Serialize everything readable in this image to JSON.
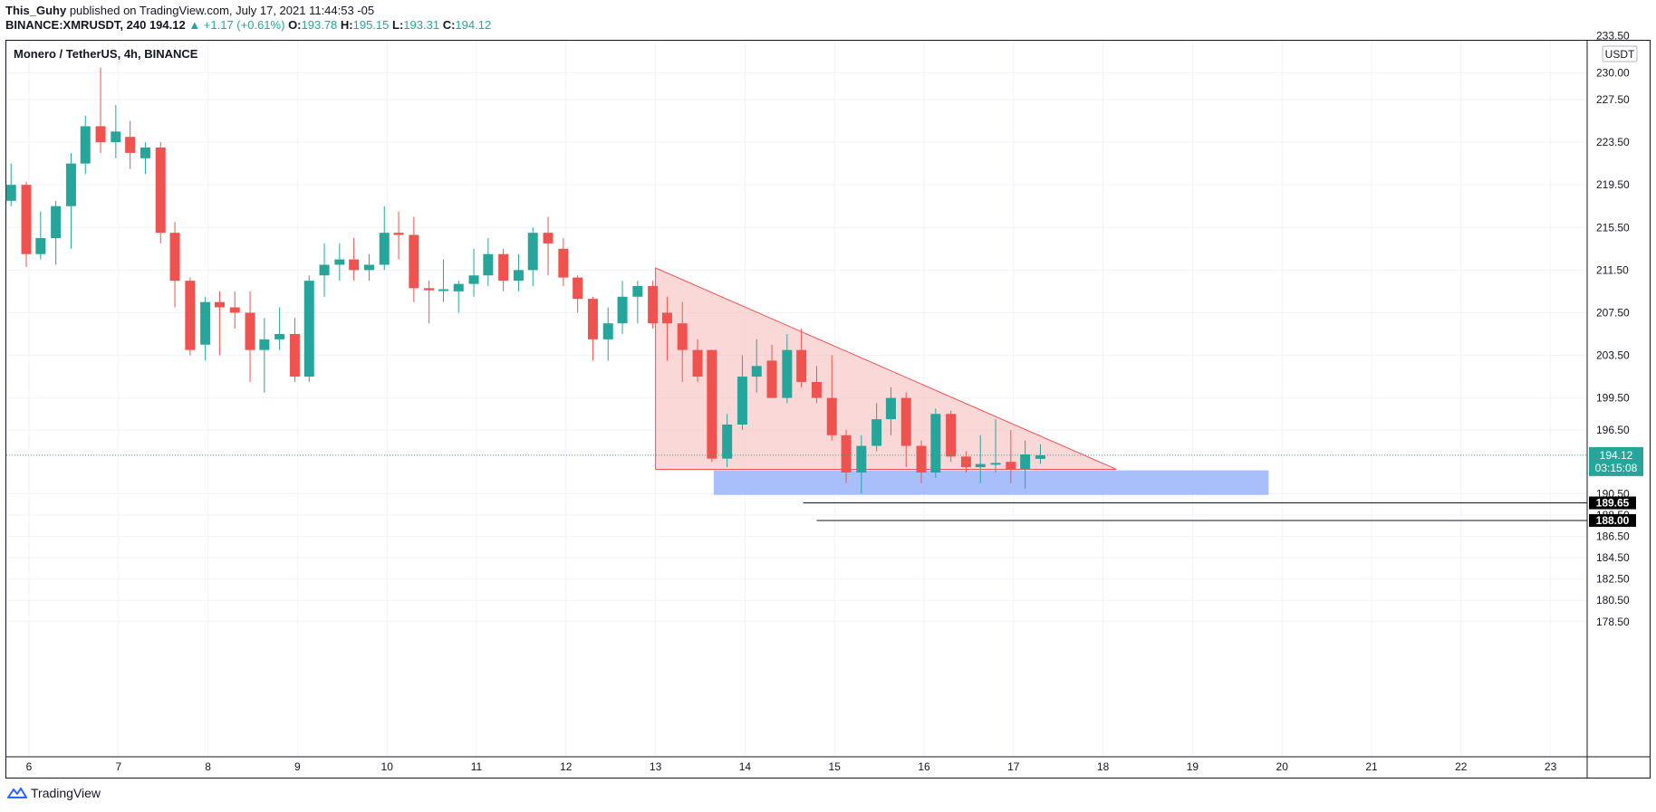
{
  "header": {
    "author": "This_Guhy",
    "published_text": "published on TradingView.com, July 17, 2021 11:44:53 -05",
    "ticker": "BINANCE:XMRUSDT, 240",
    "last": "194.12",
    "change_text": "▲ +1.17 (+0.61%)",
    "o_label": "O:",
    "o_value": "193.78",
    "h_label": "H:",
    "h_value": "195.15",
    "l_label": "L:",
    "l_value": "193.31",
    "c_label": "C:",
    "c_value": "194.12"
  },
  "symbol_title": "Monero / TetherUS, 4h, BINANCE",
  "currency": "USDT",
  "footer": {
    "brand": "TradingView"
  },
  "colors": {
    "up": "#26a69a",
    "down": "#ef5350",
    "triangle_fill": "#f7b8b8",
    "triangle_line": "#ef5350",
    "zone_fill": "#9fb8fb",
    "price_label_bg": "#26a69a",
    "level_label_bg": "#000000"
  },
  "chart_data": {
    "type": "candlestick",
    "y_axis": {
      "ticks": [
        "233.50",
        "230.00",
        "227.50",
        "223.50",
        "219.50",
        "215.50",
        "211.50",
        "207.50",
        "203.50",
        "199.50",
        "196.50",
        "190.50",
        "188.50",
        "186.50",
        "184.50",
        "182.50",
        "180.50",
        "178.50"
      ],
      "range": [
        176.5,
        233.8
      ]
    },
    "x_axis": {
      "ticks": [
        "6",
        "7",
        "8",
        "9",
        "10",
        "11",
        "12",
        "13",
        "14",
        "15",
        "16",
        "17",
        "18",
        "19",
        "20",
        "21",
        "22",
        "23"
      ]
    },
    "candles": [
      {
        "t": 5.8,
        "o": 218.0,
        "h": 221.5,
        "l": 217.5,
        "c": 219.5
      },
      {
        "t": 5.97,
        "o": 219.5,
        "h": 219.8,
        "l": 211.8,
        "c": 213.0
      },
      {
        "t": 6.13,
        "o": 213.0,
        "h": 217.0,
        "l": 212.5,
        "c": 214.5
      },
      {
        "t": 6.3,
        "o": 214.5,
        "h": 218.0,
        "l": 212.0,
        "c": 217.5
      },
      {
        "t": 6.47,
        "o": 217.5,
        "h": 222.5,
        "l": 213.5,
        "c": 221.5
      },
      {
        "t": 6.63,
        "o": 221.5,
        "h": 226.0,
        "l": 220.5,
        "c": 225.0
      },
      {
        "t": 6.8,
        "o": 225.0,
        "h": 230.5,
        "l": 222.5,
        "c": 223.5
      },
      {
        "t": 6.97,
        "o": 223.5,
        "h": 227.0,
        "l": 222.0,
        "c": 224.5
      },
      {
        "t": 7.13,
        "o": 224.0,
        "h": 225.5,
        "l": 221.0,
        "c": 222.5
      },
      {
        "t": 7.3,
        "o": 222.0,
        "h": 223.5,
        "l": 220.5,
        "c": 223.0
      },
      {
        "t": 7.47,
        "o": 223.0,
        "h": 223.5,
        "l": 214.0,
        "c": 215.0
      },
      {
        "t": 7.63,
        "o": 215.0,
        "h": 216.0,
        "l": 208.0,
        "c": 210.5
      },
      {
        "t": 7.8,
        "o": 210.5,
        "h": 210.8,
        "l": 203.5,
        "c": 204.0
      },
      {
        "t": 7.97,
        "o": 204.5,
        "h": 209.0,
        "l": 203.0,
        "c": 208.5
      },
      {
        "t": 8.13,
        "o": 208.5,
        "h": 209.5,
        "l": 203.5,
        "c": 208.0
      },
      {
        "t": 8.3,
        "o": 208.0,
        "h": 209.5,
        "l": 206.0,
        "c": 207.5
      },
      {
        "t": 8.47,
        "o": 207.5,
        "h": 209.5,
        "l": 201.0,
        "c": 204.0
      },
      {
        "t": 8.63,
        "o": 204.0,
        "h": 207.0,
        "l": 200.0,
        "c": 205.0
      },
      {
        "t": 8.8,
        "o": 205.0,
        "h": 208.0,
        "l": 204.0,
        "c": 205.5
      },
      {
        "t": 8.97,
        "o": 205.5,
        "h": 207.0,
        "l": 201.0,
        "c": 201.5
      },
      {
        "t": 9.13,
        "o": 201.5,
        "h": 211.0,
        "l": 201.0,
        "c": 210.5
      },
      {
        "t": 9.3,
        "o": 211.0,
        "h": 214.0,
        "l": 209.0,
        "c": 212.0
      },
      {
        "t": 9.47,
        "o": 212.0,
        "h": 214.0,
        "l": 210.5,
        "c": 212.5
      },
      {
        "t": 9.63,
        "o": 212.5,
        "h": 214.5,
        "l": 210.5,
        "c": 211.5
      },
      {
        "t": 9.8,
        "o": 211.5,
        "h": 213.0,
        "l": 210.5,
        "c": 212.0
      },
      {
        "t": 9.97,
        "o": 212.0,
        "h": 217.5,
        "l": 211.5,
        "c": 215.0
      },
      {
        "t": 10.13,
        "o": 215.0,
        "h": 217.0,
        "l": 212.5,
        "c": 214.8
      },
      {
        "t": 10.3,
        "o": 214.8,
        "h": 216.5,
        "l": 208.5,
        "c": 209.8
      },
      {
        "t": 10.47,
        "o": 209.8,
        "h": 210.5,
        "l": 206.5,
        "c": 209.6
      },
      {
        "t": 10.63,
        "o": 209.6,
        "h": 212.5,
        "l": 208.5,
        "c": 209.7
      },
      {
        "t": 10.8,
        "o": 209.5,
        "h": 210.5,
        "l": 207.5,
        "c": 210.2
      },
      {
        "t": 10.97,
        "o": 210.2,
        "h": 213.5,
        "l": 209.0,
        "c": 211.0
      },
      {
        "t": 11.13,
        "o": 211.0,
        "h": 214.5,
        "l": 210.0,
        "c": 213.0
      },
      {
        "t": 11.3,
        "o": 213.0,
        "h": 213.5,
        "l": 209.5,
        "c": 210.5
      },
      {
        "t": 11.47,
        "o": 210.5,
        "h": 213.0,
        "l": 209.5,
        "c": 211.5
      },
      {
        "t": 11.63,
        "o": 211.5,
        "h": 215.5,
        "l": 210.0,
        "c": 215.0
      },
      {
        "t": 11.8,
        "o": 215.0,
        "h": 216.5,
        "l": 211.0,
        "c": 214.0
      },
      {
        "t": 11.97,
        "o": 213.5,
        "h": 214.5,
        "l": 210.0,
        "c": 210.8
      },
      {
        "t": 12.13,
        "o": 210.8,
        "h": 211.0,
        "l": 207.5,
        "c": 208.8
      },
      {
        "t": 12.3,
        "o": 208.8,
        "h": 209.0,
        "l": 203.0,
        "c": 205.0
      },
      {
        "t": 12.47,
        "o": 205.0,
        "h": 208.0,
        "l": 203.0,
        "c": 206.5
      },
      {
        "t": 12.63,
        "o": 206.5,
        "h": 210.5,
        "l": 205.5,
        "c": 209.0
      },
      {
        "t": 12.8,
        "o": 209.0,
        "h": 210.5,
        "l": 206.5,
        "c": 210.0
      },
      {
        "t": 12.97,
        "o": 210.0,
        "h": 210.5,
        "l": 206.0,
        "c": 206.5
      },
      {
        "t": 13.13,
        "o": 207.5,
        "h": 209.0,
        "l": 203.0,
        "c": 206.5
      },
      {
        "t": 13.3,
        "o": 206.5,
        "h": 208.5,
        "l": 201.0,
        "c": 204.0
      },
      {
        "t": 13.47,
        "o": 204.0,
        "h": 205.0,
        "l": 201.0,
        "c": 201.5
      },
      {
        "t": 13.63,
        "o": 204.0,
        "h": 204.0,
        "l": 193.5,
        "c": 193.8
      },
      {
        "t": 13.8,
        "o": 193.8,
        "h": 198.0,
        "l": 193.0,
        "c": 197.0
      },
      {
        "t": 13.97,
        "o": 197.0,
        "h": 203.5,
        "l": 196.5,
        "c": 201.5
      },
      {
        "t": 14.13,
        "o": 201.5,
        "h": 205.0,
        "l": 200.0,
        "c": 202.5
      },
      {
        "t": 14.3,
        "o": 203.0,
        "h": 204.5,
        "l": 199.5,
        "c": 199.5
      },
      {
        "t": 14.47,
        "o": 199.5,
        "h": 205.5,
        "l": 199.0,
        "c": 204.0
      },
      {
        "t": 14.63,
        "o": 204.0,
        "h": 206.0,
        "l": 200.5,
        "c": 201.0
      },
      {
        "t": 14.8,
        "o": 201.0,
        "h": 202.5,
        "l": 199.0,
        "c": 199.5
      },
      {
        "t": 14.97,
        "o": 199.5,
        "h": 203.5,
        "l": 195.5,
        "c": 196.0
      },
      {
        "t": 15.13,
        "o": 196.0,
        "h": 196.5,
        "l": 191.5,
        "c": 192.5
      },
      {
        "t": 15.3,
        "o": 192.5,
        "h": 196.0,
        "l": 190.5,
        "c": 195.0
      },
      {
        "t": 15.47,
        "o": 195.0,
        "h": 199.0,
        "l": 194.5,
        "c": 197.5
      },
      {
        "t": 15.63,
        "o": 197.5,
        "h": 200.5,
        "l": 196.0,
        "c": 199.5
      },
      {
        "t": 15.8,
        "o": 199.5,
        "h": 200.0,
        "l": 193.0,
        "c": 195.0
      },
      {
        "t": 15.97,
        "o": 195.0,
        "h": 195.5,
        "l": 191.5,
        "c": 192.5
      },
      {
        "t": 16.13,
        "o": 192.5,
        "h": 198.5,
        "l": 192.0,
        "c": 198.0
      },
      {
        "t": 16.3,
        "o": 198.0,
        "h": 198.3,
        "l": 193.5,
        "c": 194.0
      },
      {
        "t": 16.47,
        "o": 194.0,
        "h": 194.5,
        "l": 192.5,
        "c": 193.0
      },
      {
        "t": 16.63,
        "o": 193.0,
        "h": 196.0,
        "l": 191.5,
        "c": 193.3
      },
      {
        "t": 16.8,
        "o": 193.3,
        "h": 197.5,
        "l": 192.5,
        "c": 193.4
      },
      {
        "t": 16.97,
        "o": 193.5,
        "h": 196.5,
        "l": 191.5,
        "c": 192.8
      },
      {
        "t": 17.13,
        "o": 192.8,
        "h": 195.5,
        "l": 191.0,
        "c": 194.2
      },
      {
        "t": 17.3,
        "o": 193.78,
        "h": 195.15,
        "l": 193.31,
        "c": 194.12
      }
    ],
    "annotations": {
      "descending_triangle": {
        "t_start": 13.0,
        "p_top": 211.7,
        "t_end": 18.15,
        "p_base": 192.8
      },
      "support_zone": {
        "t_start": 13.65,
        "t_end": 19.85,
        "p_top": 192.7,
        "p_bottom": 190.4
      },
      "levels": [
        {
          "price": 189.65,
          "label": "189.65",
          "t_start": 14.65
        },
        {
          "price": 188.0,
          "label": "188.00",
          "t_start": 14.8
        }
      ],
      "last_price": {
        "price": 194.12,
        "label": "194.12",
        "countdown": "03:15:08"
      }
    }
  }
}
